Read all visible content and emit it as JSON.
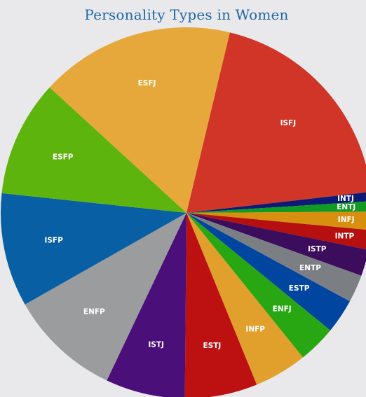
{
  "chart_data": {
    "type": "pie",
    "title": "Personality Types in Women",
    "slices": [
      {
        "label": "ISFJ",
        "value": 19.4,
        "color": "#d03527"
      },
      {
        "label": "INTJ",
        "value": 0.8,
        "color": "#0c1a78"
      },
      {
        "label": "ENTJ",
        "value": 0.9,
        "color": "#119a22"
      },
      {
        "label": "INFJ",
        "value": 1.6,
        "color": "#d88e0f"
      },
      {
        "label": "INTP",
        "value": 1.7,
        "color": "#b50f0f"
      },
      {
        "label": "ISTP",
        "value": 2.3,
        "color": "#3b0d5c"
      },
      {
        "label": "ENTP",
        "value": 2.4,
        "color": "#7b7f84"
      },
      {
        "label": "ESTP",
        "value": 3.0,
        "color": "#0045a0"
      },
      {
        "label": "ENFJ",
        "value": 3.3,
        "color": "#29a713"
      },
      {
        "label": "INFP",
        "value": 4.6,
        "color": "#e0a02b"
      },
      {
        "label": "ESTJ",
        "value": 6.3,
        "color": "#bd1010"
      },
      {
        "label": "ISTJ",
        "value": 6.9,
        "color": "#4a0f78"
      },
      {
        "label": "ENFP",
        "value": 9.7,
        "color": "#9a9c9d"
      },
      {
        "label": "ISFP",
        "value": 9.9,
        "color": "#085fa4"
      },
      {
        "label": "ESFP",
        "value": 10.1,
        "color": "#5cb40c"
      },
      {
        "label": "ESFJ",
        "value": 16.9,
        "color": "#e6a83a"
      }
    ]
  }
}
